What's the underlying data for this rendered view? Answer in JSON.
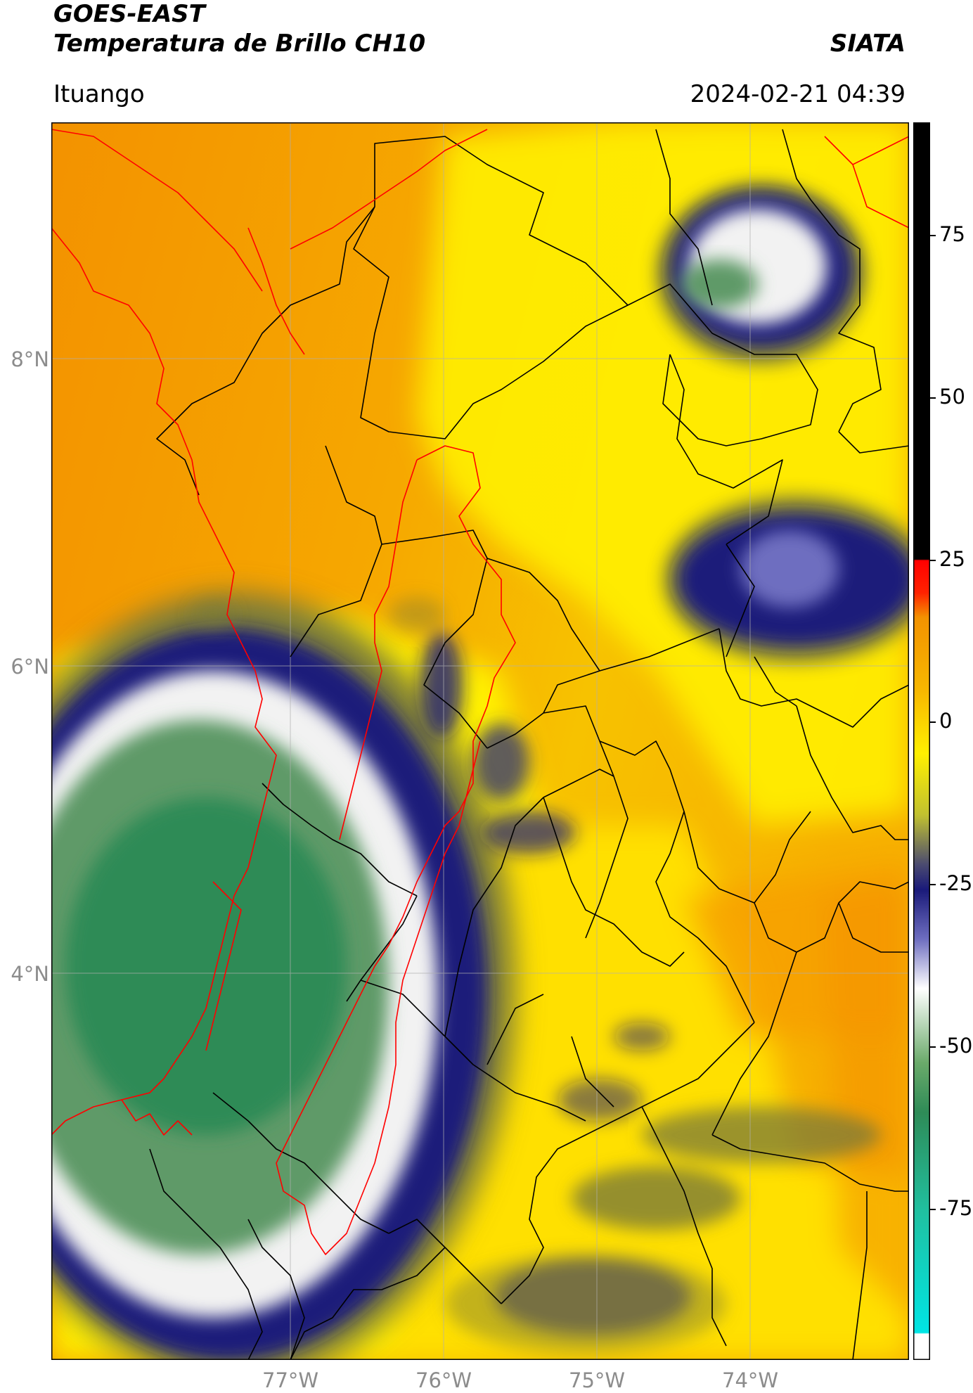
{
  "header": {
    "satellite": "GOES-EAST",
    "product": "Temperatura de Brillo CH10",
    "brand": "SIATA",
    "region": "Ituango",
    "datetime": "2024-02-21 04:39"
  },
  "map": {
    "lon_ticks": [
      "77°W",
      "76°W",
      "75°W",
      "74°W"
    ],
    "lat_ticks": [
      "8°N",
      "6°N",
      "4°N"
    ],
    "colors": {
      "orange": "#f39200",
      "yellow": "#fff000",
      "olive": "#7a7a3a",
      "navy": "#1a1a7a",
      "white": "#f2f2f2",
      "green": "#2e8b57",
      "border_black": "#000000",
      "border_red": "#ff0000"
    }
  },
  "colorbar": {
    "tick_labels": [
      "75",
      "50",
      "25",
      "0",
      "-25",
      "-50",
      "-75"
    ],
    "colors": {
      "black": "#000000",
      "red": "#ff0000",
      "orange": "#f39200",
      "yellow": "#fff000",
      "navy": "#1a1a7a",
      "white": "#ffffff",
      "green": "#2e8b57",
      "cyan": "#00e5e5"
    }
  }
}
